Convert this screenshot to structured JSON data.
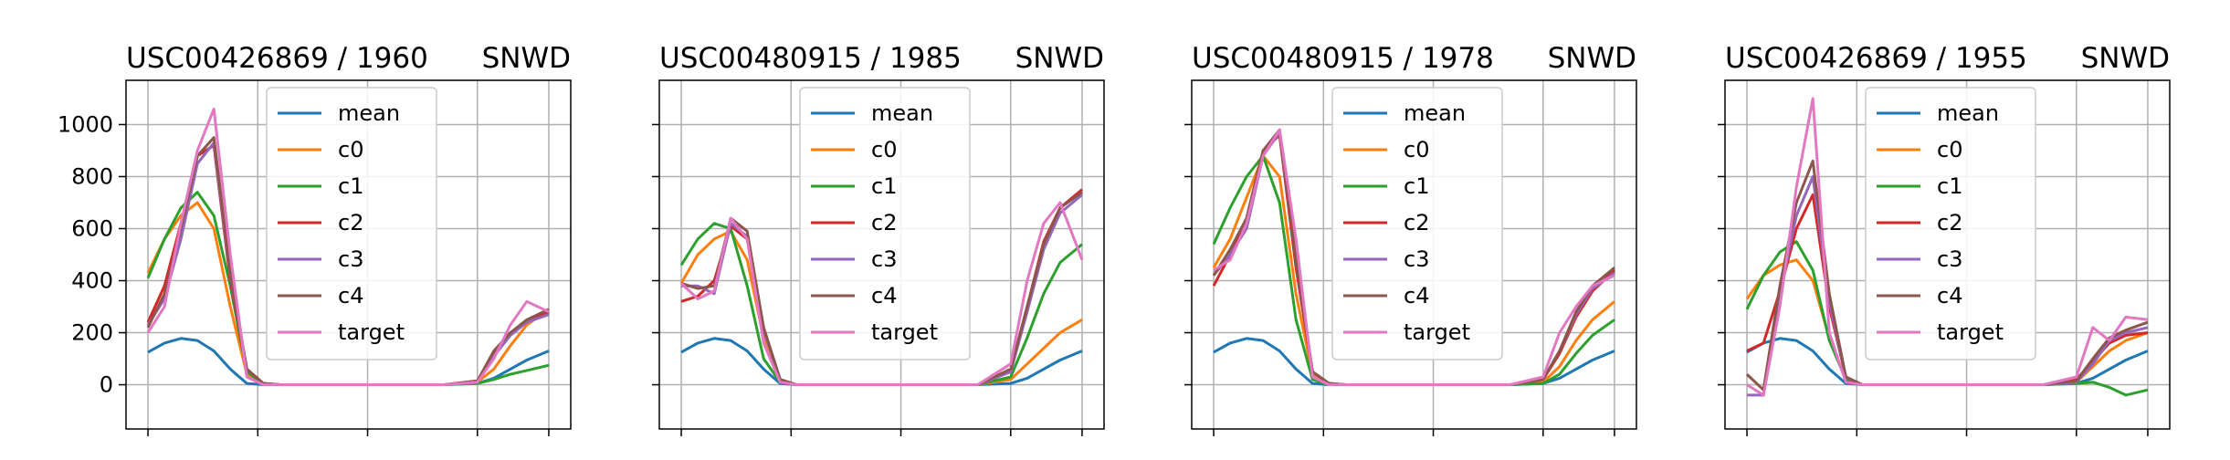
{
  "figure": {
    "background": "#ffffff"
  },
  "chart_data": [
    {
      "type": "line",
      "title_left": "USC00426869 / 1960",
      "title_right": "SNWD",
      "x": [
        0,
        15,
        30,
        45,
        60,
        75,
        90,
        105,
        120,
        150,
        180,
        210,
        240,
        270,
        300,
        315,
        330,
        345,
        365
      ],
      "xlim": [
        -20,
        385
      ],
      "ylim": [
        -170,
        1170
      ],
      "yticks": [
        0,
        200,
        400,
        600,
        800,
        1000
      ],
      "show_ytick_labels": true,
      "grid": true,
      "legend_position": "upper center",
      "series": [
        {
          "name": "mean",
          "color": "#1f77b4",
          "values": [
            125,
            160,
            178,
            170,
            130,
            60,
            5,
            0,
            0,
            0,
            0,
            0,
            0,
            0,
            5,
            25,
            60,
            95,
            130
          ]
        },
        {
          "name": "c0",
          "color": "#ff7f0e",
          "values": [
            430,
            560,
            650,
            700,
            600,
            300,
            40,
            5,
            0,
            0,
            0,
            0,
            0,
            0,
            10,
            60,
            150,
            230,
            290
          ]
        },
        {
          "name": "c1",
          "color": "#2ca02c",
          "values": [
            410,
            560,
            680,
            740,
            650,
            380,
            50,
            5,
            0,
            0,
            0,
            0,
            0,
            0,
            5,
            20,
            40,
            55,
            75
          ]
        },
        {
          "name": "c2",
          "color": "#d62728",
          "values": [
            240,
            380,
            620,
            880,
            920,
            400,
            60,
            5,
            0,
            0,
            0,
            0,
            0,
            0,
            15,
            120,
            200,
            240,
            280
          ]
        },
        {
          "name": "c3",
          "color": "#9467bd",
          "values": [
            230,
            330,
            560,
            850,
            930,
            420,
            60,
            5,
            0,
            0,
            0,
            0,
            0,
            0,
            10,
            110,
            190,
            240,
            270
          ]
        },
        {
          "name": "c4",
          "color": "#8c564b",
          "values": [
            220,
            350,
            600,
            880,
            950,
            430,
            60,
            5,
            0,
            0,
            0,
            0,
            0,
            0,
            15,
            130,
            200,
            250,
            290
          ]
        },
        {
          "name": "target",
          "color": "#e377c2",
          "values": [
            200,
            300,
            620,
            900,
            1060,
            500,
            30,
            0,
            0,
            0,
            0,
            0,
            0,
            0,
            10,
            100,
            230,
            320,
            280
          ]
        }
      ]
    },
    {
      "type": "line",
      "title_left": "USC00480915 / 1985",
      "title_right": "SNWD",
      "x": [
        0,
        15,
        30,
        45,
        60,
        75,
        90,
        105,
        120,
        150,
        180,
        210,
        240,
        270,
        300,
        315,
        330,
        345,
        365
      ],
      "xlim": [
        -20,
        385
      ],
      "ylim": [
        -170,
        1170
      ],
      "yticks": [
        0,
        200,
        400,
        600,
        800,
        1000
      ],
      "show_ytick_labels": false,
      "grid": true,
      "legend_position": "upper center",
      "series": [
        {
          "name": "mean",
          "color": "#1f77b4",
          "values": [
            125,
            160,
            178,
            170,
            130,
            60,
            5,
            0,
            0,
            0,
            0,
            0,
            0,
            0,
            5,
            25,
            60,
            95,
            130
          ]
        },
        {
          "name": "c0",
          "color": "#ff7f0e",
          "values": [
            390,
            500,
            560,
            590,
            480,
            180,
            20,
            0,
            0,
            0,
            0,
            0,
            0,
            0,
            20,
            80,
            140,
            200,
            250
          ]
        },
        {
          "name": "c1",
          "color": "#2ca02c",
          "values": [
            460,
            560,
            620,
            600,
            380,
            100,
            10,
            0,
            0,
            0,
            0,
            0,
            0,
            0,
            30,
            180,
            350,
            470,
            540
          ]
        },
        {
          "name": "c2",
          "color": "#d62728",
          "values": [
            320,
            340,
            400,
            610,
            560,
            220,
            20,
            0,
            0,
            0,
            0,
            0,
            0,
            0,
            50,
            300,
            550,
            680,
            750
          ]
        },
        {
          "name": "c3",
          "color": "#9467bd",
          "values": [
            380,
            380,
            350,
            620,
            570,
            210,
            20,
            0,
            0,
            0,
            0,
            0,
            0,
            0,
            50,
            280,
            520,
            660,
            730
          ]
        },
        {
          "name": "c4",
          "color": "#8c564b",
          "values": [
            390,
            370,
            380,
            640,
            590,
            220,
            20,
            0,
            0,
            0,
            0,
            0,
            0,
            0,
            60,
            300,
            540,
            680,
            740
          ]
        },
        {
          "name": "target",
          "color": "#e377c2",
          "values": [
            390,
            330,
            360,
            640,
            560,
            160,
            10,
            0,
            0,
            0,
            0,
            0,
            0,
            0,
            80,
            400,
            620,
            700,
            480
          ]
        }
      ]
    },
    {
      "type": "line",
      "title_left": "USC00480915 / 1978",
      "title_right": "SNWD",
      "x": [
        0,
        15,
        30,
        45,
        60,
        75,
        90,
        105,
        120,
        150,
        180,
        210,
        240,
        270,
        300,
        315,
        330,
        345,
        365
      ],
      "xlim": [
        -20,
        385
      ],
      "ylim": [
        -170,
        1170
      ],
      "yticks": [
        0,
        200,
        400,
        600,
        800,
        1000
      ],
      "show_ytick_labels": false,
      "grid": true,
      "legend_position": "upper center",
      "series": [
        {
          "name": "mean",
          "color": "#1f77b4",
          "values": [
            125,
            160,
            178,
            170,
            130,
            60,
            5,
            0,
            0,
            0,
            0,
            0,
            0,
            0,
            5,
            25,
            60,
            95,
            130
          ]
        },
        {
          "name": "c0",
          "color": "#ff7f0e",
          "values": [
            450,
            560,
            720,
            880,
            800,
            350,
            40,
            5,
            0,
            0,
            0,
            0,
            0,
            0,
            10,
            70,
            170,
            250,
            320
          ]
        },
        {
          "name": "c1",
          "color": "#2ca02c",
          "values": [
            540,
            680,
            800,
            880,
            700,
            250,
            20,
            0,
            0,
            0,
            0,
            0,
            0,
            0,
            5,
            40,
            120,
            190,
            250
          ]
        },
        {
          "name": "c2",
          "color": "#d62728",
          "values": [
            380,
            500,
            640,
            900,
            960,
            450,
            50,
            5,
            0,
            0,
            0,
            0,
            0,
            0,
            20,
            120,
            260,
            360,
            440
          ]
        },
        {
          "name": "c3",
          "color": "#9467bd",
          "values": [
            420,
            500,
            600,
            880,
            970,
            480,
            50,
            5,
            0,
            0,
            0,
            0,
            0,
            0,
            20,
            130,
            270,
            370,
            430
          ]
        },
        {
          "name": "c4",
          "color": "#8c564b",
          "values": [
            420,
            520,
            640,
            900,
            980,
            480,
            50,
            5,
            0,
            0,
            0,
            0,
            0,
            0,
            20,
            130,
            280,
            380,
            450
          ]
        },
        {
          "name": "target",
          "color": "#e377c2",
          "values": [
            440,
            480,
            620,
            880,
            980,
            560,
            30,
            0,
            0,
            0,
            0,
            0,
            0,
            0,
            30,
            200,
            300,
            380,
            420
          ]
        }
      ]
    },
    {
      "type": "line",
      "title_left": "USC00426869 / 1955",
      "title_right": "SNWD",
      "x": [
        0,
        15,
        30,
        45,
        60,
        75,
        90,
        105,
        120,
        150,
        180,
        210,
        240,
        270,
        300,
        315,
        330,
        345,
        365
      ],
      "xlim": [
        -20,
        385
      ],
      "ylim": [
        -170,
        1170
      ],
      "yticks": [
        0,
        200,
        400,
        600,
        800,
        1000
      ],
      "show_ytick_labels": false,
      "grid": true,
      "legend_position": "upper center",
      "series": [
        {
          "name": "mean",
          "color": "#1f77b4",
          "values": [
            125,
            160,
            178,
            170,
            130,
            60,
            5,
            0,
            0,
            0,
            0,
            0,
            0,
            0,
            5,
            25,
            60,
            95,
            130
          ]
        },
        {
          "name": "c0",
          "color": "#ff7f0e",
          "values": [
            330,
            420,
            460,
            480,
            400,
            180,
            20,
            0,
            0,
            0,
            0,
            0,
            0,
            0,
            10,
            70,
            130,
            170,
            200
          ]
        },
        {
          "name": "c1",
          "color": "#2ca02c",
          "values": [
            290,
            420,
            510,
            550,
            440,
            170,
            20,
            0,
            0,
            0,
            0,
            0,
            0,
            0,
            5,
            10,
            -10,
            -40,
            -20
          ]
        },
        {
          "name": "c2",
          "color": "#d62728",
          "values": [
            130,
            160,
            360,
            600,
            730,
            300,
            30,
            0,
            0,
            0,
            0,
            0,
            0,
            0,
            20,
            90,
            160,
            190,
            200
          ]
        },
        {
          "name": "c3",
          "color": "#9467bd",
          "values": [
            -40,
            -40,
            350,
            650,
            800,
            320,
            30,
            0,
            0,
            0,
            0,
            0,
            0,
            0,
            10,
            80,
            170,
            200,
            220
          ]
        },
        {
          "name": "c4",
          "color": "#8c564b",
          "values": [
            40,
            -20,
            380,
            700,
            860,
            350,
            30,
            0,
            0,
            0,
            0,
            0,
            0,
            0,
            15,
            100,
            180,
            210,
            240
          ]
        },
        {
          "name": "target",
          "color": "#e377c2",
          "values": [
            0,
            -40,
            300,
            760,
            1100,
            200,
            10,
            0,
            0,
            0,
            0,
            0,
            0,
            0,
            30,
            220,
            170,
            260,
            250
          ]
        }
      ]
    }
  ]
}
